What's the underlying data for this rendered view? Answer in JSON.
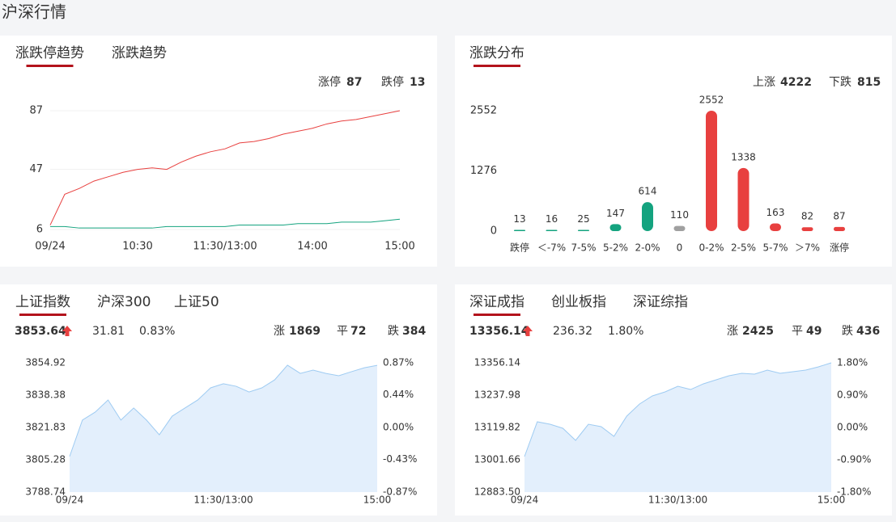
{
  "header": {
    "title": "沪深行情"
  },
  "limit_trend": {
    "type": "line",
    "tabs": [
      "涨跌停趋势",
      "涨跌趋势"
    ],
    "active_tab": 0,
    "x": [
      0,
      10,
      20,
      30,
      40,
      50,
      60,
      70,
      80,
      90,
      100,
      110,
      120,
      130,
      140,
      150,
      160,
      170,
      180,
      190,
      200,
      210,
      220,
      230,
      240
    ],
    "xlim": [
      0,
      240
    ],
    "xticks": [
      {
        "value": 0,
        "label": "09/24"
      },
      {
        "value": 60,
        "label": "10:30"
      },
      {
        "value": 120,
        "label": "11:30/13:00"
      },
      {
        "value": 180,
        "label": "14:00"
      },
      {
        "value": 240,
        "label": "15:00"
      }
    ],
    "ylim": [
      6,
      87
    ],
    "yticks": [
      6,
      47,
      87
    ],
    "grid": true,
    "series": [
      {
        "name": "涨停",
        "color": "#e8403f",
        "values": [
          9,
          30,
          34,
          39,
          42,
          45,
          47,
          48,
          47,
          52,
          56,
          59,
          61,
          65,
          66,
          68,
          71,
          73,
          75,
          78,
          80,
          81,
          83,
          85,
          87
        ]
      },
      {
        "name": "跌停",
        "color": "#14a37f",
        "values": [
          8,
          8,
          7,
          7,
          7,
          7,
          7,
          7,
          8,
          8,
          8,
          8,
          8,
          9,
          9,
          9,
          9,
          10,
          10,
          10,
          11,
          11,
          11,
          12,
          13
        ]
      }
    ]
  },
  "distribution": {
    "type": "bar",
    "tabs": [
      "涨跌分布"
    ],
    "active_tab": 0,
    "up_label": "上涨",
    "up_count": 4222,
    "down_label": "下跌",
    "down_count": 815,
    "categories": [
      "跌停",
      "＜-7%",
      "7-5%",
      "5-2%",
      "2-0%",
      "0",
      "0-2%",
      "2-5%",
      "5-7%",
      "＞7%",
      "涨停"
    ],
    "values": [
      13,
      16,
      25,
      147,
      614,
      110,
      2552,
      1338,
      163,
      82,
      87
    ],
    "colors": [
      "#14a37f",
      "#14a37f",
      "#14a37f",
      "#14a37f",
      "#14a37f",
      "#a0a0a0",
      "#e8403f",
      "#e8403f",
      "#e8403f",
      "#e8403f",
      "#e8403f"
    ],
    "ylim": [
      0,
      2552
    ],
    "yticks": [
      0,
      1276,
      2552
    ]
  },
  "sh_index": {
    "type": "area",
    "tabs": [
      "上证指数",
      "沪深300",
      "上证50"
    ],
    "active_tab": 0,
    "change": 31.81,
    "change_pct": "0.83%",
    "stats": [
      {
        "label": "涨",
        "value": 1869
      },
      {
        "label": "平",
        "value": 72
      },
      {
        "label": "跌",
        "value": 384
      }
    ],
    "x": [
      0,
      10,
      20,
      30,
      40,
      50,
      60,
      70,
      80,
      90,
      100,
      110,
      120,
      130,
      140,
      150,
      160,
      170,
      180,
      190,
      200,
      210,
      220,
      230,
      240
    ],
    "xlim": [
      0,
      240
    ],
    "xticks": [
      {
        "value": 0,
        "label": "09/24"
      },
      {
        "value": 120,
        "label": "11:30/13:00"
      },
      {
        "value": 240,
        "label": "15:00"
      }
    ],
    "ylim": [
      3788.74,
      3854.92
    ],
    "yticks": [
      3788.74,
      3805.28,
      3821.83,
      3838.38,
      3854.92
    ],
    "y2lim": [
      -0.87,
      0.87
    ],
    "y2ticks": [
      {
        "value": -0.87,
        "label": "-0.87%"
      },
      {
        "value": -0.43,
        "label": "-0.43%"
      },
      {
        "value": 0,
        "label": "0.00%"
      },
      {
        "value": 0.44,
        "label": "0.44%"
      },
      {
        "value": 0.87,
        "label": "0.87%"
      }
    ],
    "color": "#9ecbf2",
    "values": [
      3807.0,
      3825.6,
      3829.7,
      3835.9,
      3825.6,
      3831.8,
      3825.6,
      3818.1,
      3827.6,
      3831.8,
      3835.9,
      3842.1,
      3844.2,
      3842.9,
      3840.0,
      3842.1,
      3846.2,
      3853.7,
      3849.5,
      3851.2,
      3849.5,
      3848.3,
      3850.4,
      3852.4,
      3853.64
    ]
  },
  "sz_index": {
    "type": "area",
    "tabs": [
      "深证成指",
      "创业板指",
      "深证综指"
    ],
    "active_tab": 0,
    "change": 236.32,
    "change_pct": "1.80%",
    "stats": [
      {
        "label": "涨",
        "value": 2425
      },
      {
        "label": "平",
        "value": 49
      },
      {
        "label": "跌",
        "value": 436
      }
    ],
    "x": [
      0,
      10,
      20,
      30,
      40,
      50,
      60,
      70,
      80,
      90,
      100,
      110,
      120,
      130,
      140,
      150,
      160,
      170,
      180,
      190,
      200,
      210,
      220,
      230,
      240
    ],
    "xlim": [
      0,
      240
    ],
    "xticks": [
      {
        "value": 0,
        "label": "09/24"
      },
      {
        "value": 120,
        "label": "11:30/13:00"
      },
      {
        "value": 240,
        "label": "15:00"
      }
    ],
    "ylim": [
      12883.5,
      13356.14
    ],
    "yticks": [
      {
        "value": 12883.5,
        "label": "12883.50"
      },
      13001.66,
      13119.82,
      13237.98,
      13356.14
    ],
    "y2lim": [
      -1.8,
      1.8
    ],
    "y2ticks": [
      {
        "value": -1.8,
        "label": "-1.80%"
      },
      {
        "value": -0.9,
        "label": "-0.90%"
      },
      {
        "value": 0,
        "label": "0.00%"
      },
      {
        "value": 0.9,
        "label": "0.90%"
      },
      {
        "value": 1.8,
        "label": "1.80%"
      }
    ],
    "color": "#9ecbf2",
    "values": [
      13013.5,
      13140.5,
      13131.6,
      13116.9,
      13072.6,
      13131.6,
      13122.8,
      13087.4,
      13161.3,
      13205.5,
      13235.0,
      13249.8,
      13270.5,
      13258.6,
      13279.4,
      13294.1,
      13308.9,
      13317.8,
      13314.8,
      13329.6,
      13317.8,
      13323.7,
      13329.6,
      13341.4,
      13356.14
    ]
  }
}
